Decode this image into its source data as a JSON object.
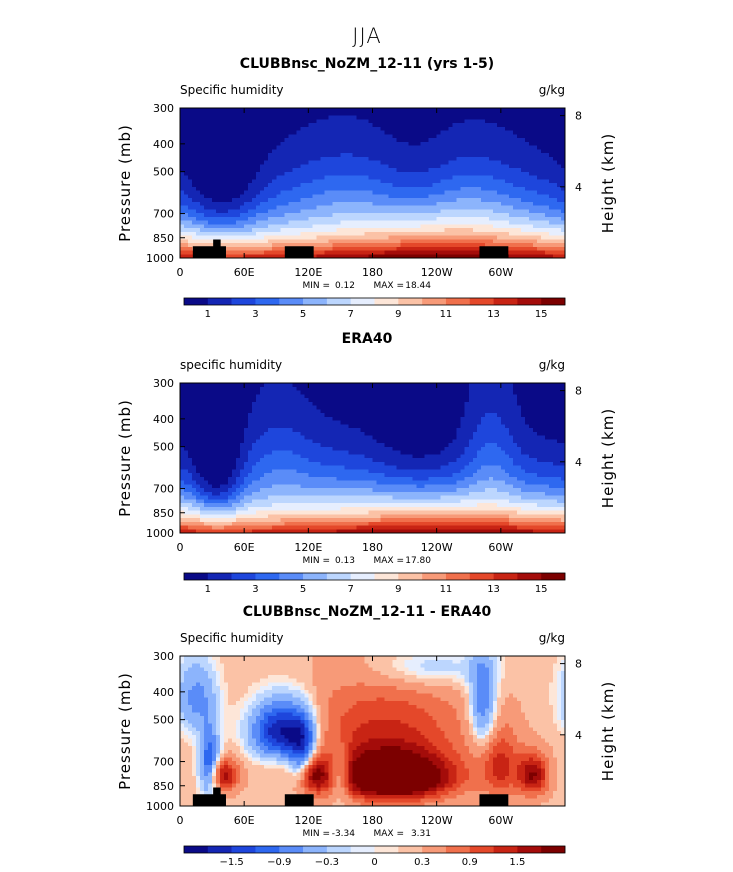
{
  "page_title": "JJA",
  "chart_data": [
    {
      "type": "heatmap",
      "title": "CLUBBnsc_NoZM_12-11 (yrs 1-5)",
      "variable": "Specific humidity",
      "units": "g/kg",
      "ylabel": "Pressure (mb)",
      "y2label": "Height (km)",
      "x_ticks": [
        "0",
        "60E",
        "120E",
        "180",
        "120W",
        "60W"
      ],
      "x_tick_lon": [
        0,
        60,
        120,
        180,
        240,
        300
      ],
      "xlim": [
        0,
        360
      ],
      "y_ticks": [
        "300",
        "400",
        "500",
        "700",
        "850",
        "1000"
      ],
      "y_tick_p": [
        300,
        400,
        500,
        700,
        850,
        1000
      ],
      "ylim": [
        300,
        1000
      ],
      "y2_ticks": [
        "8",
        "4"
      ],
      "y2_tick_km": [
        8,
        4
      ],
      "min_label": "MIN =",
      "min_value": "0.12",
      "max_label": "MAX =",
      "max_value": "18.44",
      "colorbar_ticks": [
        "1",
        "3",
        "5",
        "7",
        "9",
        "11",
        "13",
        "15"
      ],
      "colorbar_levels": [
        1,
        2,
        3,
        4,
        5,
        6,
        7,
        8,
        9,
        10,
        11,
        12,
        13,
        14,
        15
      ],
      "field": "model",
      "terrain": [
        {
          "lon0": 12,
          "lon1": 43,
          "p": 910
        },
        {
          "lon0": 31,
          "lon1": 38,
          "p": 862
        },
        {
          "lon0": 98,
          "lon1": 125,
          "p": 910
        },
        {
          "lon0": 280,
          "lon1": 307,
          "p": 910
        }
      ]
    },
    {
      "type": "heatmap",
      "title": "ERA40",
      "variable": "specific humidity",
      "units": "g/kg",
      "ylabel": "Pressure (mb)",
      "y2label": "Height (km)",
      "x_ticks": [
        "0",
        "60E",
        "120E",
        "180",
        "120W",
        "60W"
      ],
      "x_tick_lon": [
        0,
        60,
        120,
        180,
        240,
        300
      ],
      "xlim": [
        0,
        360
      ],
      "y_ticks": [
        "300",
        "400",
        "500",
        "700",
        "850",
        "1000"
      ],
      "y_tick_p": [
        300,
        400,
        500,
        700,
        850,
        1000
      ],
      "ylim": [
        300,
        1000
      ],
      "y2_ticks": [
        "8",
        "4"
      ],
      "y2_tick_km": [
        8,
        4
      ],
      "min_label": "MIN =",
      "min_value": "0.13",
      "max_label": "MAX =",
      "max_value": "17.80",
      "colorbar_ticks": [
        "1",
        "3",
        "5",
        "7",
        "9",
        "11",
        "13",
        "15"
      ],
      "colorbar_levels": [
        1,
        2,
        3,
        4,
        5,
        6,
        7,
        8,
        9,
        10,
        11,
        12,
        13,
        14,
        15
      ],
      "field": "obs",
      "terrain": []
    },
    {
      "type": "heatmap",
      "title": "CLUBBnsc_NoZM_12-11 - ERA40",
      "variable": "Specific humidity",
      "units": "g/kg",
      "ylabel": "Pressure (mb)",
      "y2label": "Height (km)",
      "x_ticks": [
        "0",
        "60E",
        "120E",
        "180",
        "120W",
        "60W"
      ],
      "x_tick_lon": [
        0,
        60,
        120,
        180,
        240,
        300
      ],
      "xlim": [
        0,
        360
      ],
      "y_ticks": [
        "300",
        "400",
        "500",
        "700",
        "850",
        "1000"
      ],
      "y_tick_p": [
        300,
        400,
        500,
        700,
        850,
        1000
      ],
      "ylim": [
        300,
        1000
      ],
      "y2_ticks": [
        "8",
        "4"
      ],
      "y2_tick_km": [
        8,
        4
      ],
      "min_label": "MIN =",
      "min_value": "-3.34",
      "max_label": "MAX =",
      "max_value": "3.31",
      "colorbar_ticks": [
        "−1.5",
        "−0.9",
        "−0.3",
        "0",
        "0.3",
        "0.9",
        "1.5"
      ],
      "colorbar_levels": [
        -1.8,
        -1.5,
        -1.2,
        -0.9,
        -0.6,
        -0.3,
        -0.1,
        0,
        0.1,
        0.3,
        0.6,
        0.9,
        1.2,
        1.5,
        1.8
      ],
      "field": "diff",
      "terrain": [
        {
          "lon0": 12,
          "lon1": 43,
          "p": 910
        },
        {
          "lon0": 31,
          "lon1": 38,
          "p": 862
        },
        {
          "lon0": 98,
          "lon1": 125,
          "p": 910
        },
        {
          "lon0": 280,
          "lon1": 307,
          "p": 910
        }
      ]
    }
  ],
  "palette": [
    "#0a0a87",
    "#1426b4",
    "#1e46dc",
    "#2e68f0",
    "#5a8cf8",
    "#8cb4fc",
    "#bcd6fe",
    "#e6eefe",
    "#fde6d8",
    "#fbc2a6",
    "#f79a78",
    "#f0704c",
    "#e4482a",
    "#c82414",
    "#a40c0a",
    "#7c0000"
  ]
}
